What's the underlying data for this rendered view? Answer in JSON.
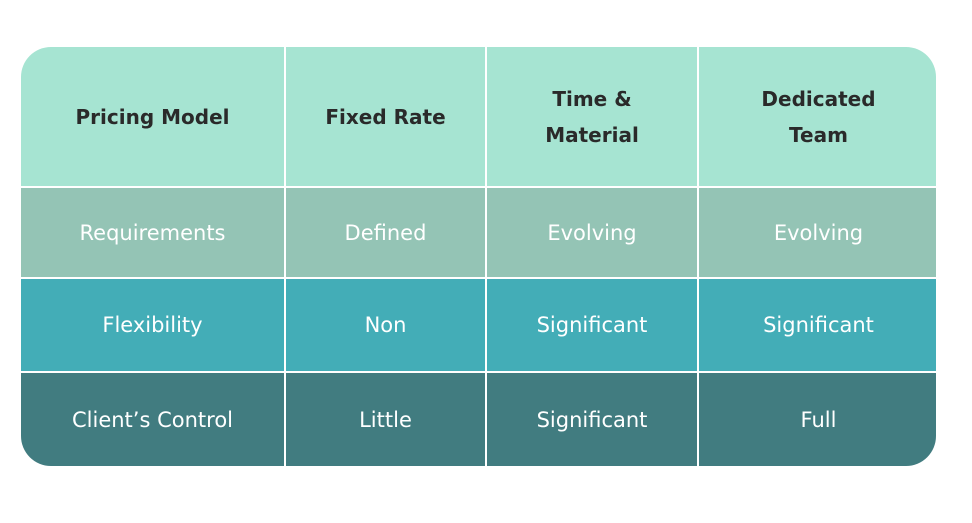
{
  "table": {
    "header": [
      "Pricing Model",
      "Fixed Rate",
      "Time & Material",
      "Dedicated Team"
    ],
    "rows": [
      [
        "Requirements",
        "Defined",
        "Evolving",
        "Evolving"
      ],
      [
        "Flexibility",
        "Non",
        "Significant",
        "Significant"
      ],
      [
        "Client’s Control",
        "Little",
        "Significant",
        "Full"
      ]
    ]
  }
}
